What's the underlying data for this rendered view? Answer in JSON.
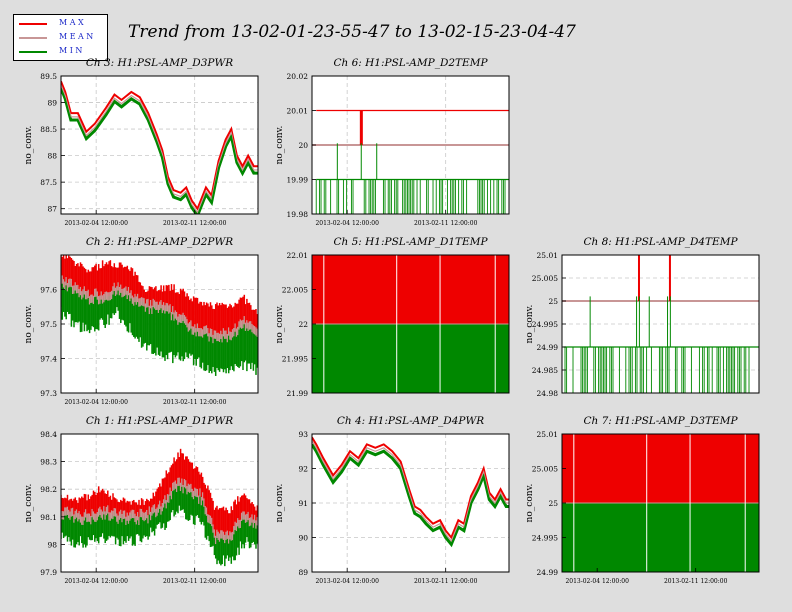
{
  "title": "Trend from 13-02-01-23-55-47 to 13-02-15-23-04-47",
  "legend": [
    {
      "label": "MAX",
      "color": "#ee0000"
    },
    {
      "label": "MEAN",
      "color": "#c89696"
    },
    {
      "label": "MIN",
      "color": "#008800"
    }
  ],
  "colors": {
    "max": "#ee0000",
    "mean": "#c89696",
    "min": "#008800",
    "page_bg": "#dedede"
  },
  "chart_data": [
    {
      "id": "ch3",
      "type": "line",
      "title": "Ch 3: H1:PSL-AMP_D3PWR",
      "ylabel": "no_conv.",
      "ylim": [
        86.9,
        89.5
      ],
      "yticks": [
        "89.5",
        "89",
        "88.5",
        "88",
        "87.5",
        "87"
      ],
      "ytick_values": [
        89.5,
        89,
        88.5,
        88,
        87.5,
        87
      ],
      "xlim": [
        0,
        14
      ],
      "xticks": [
        "2013-02-04 12:00:00",
        "2013-02-11 12:00:00"
      ],
      "xtick_values": [
        2.5,
        9.5
      ],
      "series": [
        {
          "name": "MAX",
          "x": [
            0,
            0.3,
            0.7,
            1.2,
            1.8,
            2.4,
            3.2,
            3.8,
            4.3,
            5.0,
            5.6,
            6.2,
            6.8,
            7.2,
            7.6,
            8.0,
            8.5,
            8.9,
            9.3,
            9.7,
            10.3,
            10.7,
            11.2,
            11.7,
            12.1,
            12.5,
            12.9,
            13.3,
            13.7,
            14
          ],
          "values": [
            89.4,
            89.2,
            88.8,
            88.8,
            88.45,
            88.6,
            88.9,
            89.15,
            89.05,
            89.2,
            89.1,
            88.8,
            88.4,
            88.1,
            87.6,
            87.35,
            87.3,
            87.4,
            87.15,
            87.0,
            87.4,
            87.25,
            87.9,
            88.3,
            88.5,
            88.0,
            87.8,
            88.0,
            87.8,
            87.8
          ]
        },
        {
          "name": "MEAN",
          "x": [
            0,
            0.3,
            0.7,
            1.2,
            1.8,
            2.4,
            3.2,
            3.8,
            4.3,
            5.0,
            5.6,
            6.2,
            6.8,
            7.2,
            7.6,
            8.0,
            8.5,
            8.9,
            9.3,
            9.7,
            10.3,
            10.7,
            11.2,
            11.7,
            12.1,
            12.5,
            12.9,
            13.3,
            13.7,
            14
          ],
          "values": [
            89.33,
            89.13,
            88.73,
            88.73,
            88.38,
            88.53,
            88.83,
            89.08,
            88.98,
            89.13,
            89.03,
            88.73,
            88.33,
            88.03,
            87.53,
            87.28,
            87.23,
            87.33,
            87.08,
            86.93,
            87.33,
            87.18,
            87.83,
            88.23,
            88.43,
            87.93,
            87.73,
            87.93,
            87.73,
            87.73
          ]
        },
        {
          "name": "MIN",
          "x": [
            0,
            0.3,
            0.7,
            1.2,
            1.8,
            2.4,
            3.2,
            3.8,
            4.3,
            5.0,
            5.6,
            6.2,
            6.8,
            7.2,
            7.6,
            8.0,
            8.5,
            8.9,
            9.3,
            9.7,
            10.3,
            10.7,
            11.2,
            11.7,
            12.1,
            12.5,
            12.9,
            13.3,
            13.7,
            14
          ],
          "values": [
            89.27,
            89.07,
            88.67,
            88.67,
            88.32,
            88.47,
            88.77,
            89.02,
            88.92,
            89.07,
            88.97,
            88.67,
            88.27,
            87.97,
            87.47,
            87.22,
            87.17,
            87.27,
            87.02,
            86.87,
            87.27,
            87.12,
            87.77,
            88.17,
            88.37,
            87.87,
            87.67,
            87.87,
            87.67,
            87.67
          ]
        }
      ]
    },
    {
      "id": "ch6",
      "type": "line",
      "title": "Ch 6: H1:PSL-AMP_D2TEMP",
      "ylabel": "no_conv.",
      "ylim": [
        19.98,
        20.02
      ],
      "yticks": [
        "20.02",
        "20.01",
        "20",
        "19.99",
        "19.98"
      ],
      "ytick_values": [
        20.02,
        20.01,
        20,
        19.99,
        19.98
      ],
      "xlim": [
        0,
        14
      ],
      "xticks": [
        "2013-02-04 12:00:00",
        "2013-02-11 12:00:00"
      ],
      "xtick_values": [
        2.5,
        9.5
      ],
      "series": [
        {
          "name": "MAX",
          "x": [
            0.3,
            2.0,
            2.05,
            2.2,
            2.25,
            7.0,
            7.05,
            14
          ],
          "values": [
            20.01,
            20.01,
            20.0,
            20.0,
            20.01,
            20.01,
            20.01,
            20.01
          ]
        },
        {
          "name": "MEAN",
          "x": [
            0,
            14
          ],
          "values": [
            20.0,
            20.0
          ]
        },
        {
          "name": "MIN",
          "x": [
            0.3,
            14
          ],
          "values": [
            19.99,
            19.99
          ]
        }
      ]
    },
    {
      "id": "ch2",
      "type": "line",
      "title": "Ch 2: H1:PSL-AMP_D2PWR",
      "ylabel": "no_conv.",
      "ylim": [
        97.3,
        97.7
      ],
      "yticks": [
        "97.6",
        "97.5",
        "97.4",
        "97.3"
      ],
      "ytick_values": [
        97.6,
        97.5,
        97.4,
        97.3
      ],
      "xlim": [
        0,
        14
      ],
      "xticks": [
        "2013-02-04 12:00:00",
        "2013-02-11 12:00:00"
      ],
      "xtick_values": [
        2.5,
        9.5
      ],
      "series": [
        {
          "name": "MAX",
          "x": [
            0,
            1,
            2,
            3,
            4,
            5,
            6,
            7,
            8,
            9,
            10,
            11,
            12,
            13,
            14
          ],
          "values": [
            97.7,
            97.67,
            97.65,
            97.67,
            97.67,
            97.65,
            97.6,
            97.6,
            97.6,
            97.58,
            97.55,
            97.55,
            97.55,
            97.57,
            97.52
          ]
        },
        {
          "name": "MEAN",
          "x": [
            0,
            1,
            2,
            3,
            4,
            5,
            6,
            7,
            8,
            9,
            10,
            11,
            12,
            13,
            14
          ],
          "values": [
            97.63,
            97.6,
            97.58,
            97.58,
            97.6,
            97.58,
            97.55,
            97.55,
            97.53,
            97.5,
            97.48,
            97.46,
            97.47,
            97.5,
            97.47
          ]
        },
        {
          "name": "MIN",
          "x": [
            0,
            1,
            2,
            3,
            4,
            5,
            6,
            7,
            8,
            9,
            10,
            11,
            12,
            13,
            14
          ],
          "values": [
            97.55,
            97.52,
            97.5,
            97.52,
            97.55,
            97.5,
            97.45,
            97.43,
            97.42,
            97.42,
            97.4,
            97.38,
            97.38,
            97.4,
            97.38
          ]
        }
      ]
    },
    {
      "id": "ch5",
      "type": "area",
      "title": "Ch 5: H1:PSL-AMP_D1TEMP",
      "ylabel": "no_conv.",
      "ylim": [
        21.99,
        22.01
      ],
      "yticks": [
        "22.01",
        "22.005",
        "22",
        "21.995",
        "21.99"
      ],
      "ytick_values": [
        22.01,
        22.005,
        22,
        21.995,
        21.99
      ],
      "xlim": [
        0,
        14
      ],
      "xticks": [],
      "xtick_values": [],
      "series": [
        {
          "name": "MAX",
          "x": [
            0,
            14
          ],
          "values": [
            22.01,
            22.01
          ]
        },
        {
          "name": "MEAN",
          "x": [
            0,
            14
          ],
          "values": [
            22.0,
            22.0
          ]
        },
        {
          "name": "MIN",
          "x": [
            0,
            14
          ],
          "values": [
            21.99,
            21.99
          ]
        }
      ]
    },
    {
      "id": "ch8",
      "type": "line",
      "title": "Ch 8: H1:PSL-AMP_D4TEMP",
      "ylabel": "no_conv.",
      "ylim": [
        24.98,
        25.01
      ],
      "yticks": [
        "25.01",
        "25.005",
        "25",
        "24.995",
        "24.99",
        "24.985",
        "24.98"
      ],
      "ytick_values": [
        25.01,
        25.005,
        25,
        24.995,
        24.99,
        24.985,
        24.98
      ],
      "xlim": [
        0,
        14
      ],
      "xticks": [],
      "xtick_values": [],
      "series": [
        {
          "name": "MAX",
          "x": [
            0,
            14
          ],
          "values": [
            25.0,
            25.0
          ]
        },
        {
          "name": "MEAN",
          "x": [
            0,
            14
          ],
          "values": [
            25.0,
            25.0
          ]
        },
        {
          "name": "MIN",
          "x": [
            0.1,
            14
          ],
          "values": [
            24.99,
            24.99
          ]
        }
      ]
    },
    {
      "id": "ch1",
      "type": "line",
      "title": "Ch 1: H1:PSL-AMP_D1PWR",
      "ylabel": "no_conv.",
      "ylim": [
        97.9,
        98.4
      ],
      "yticks": [
        "98.4",
        "98.3",
        "98.2",
        "98.1",
        "98",
        "97.9"
      ],
      "ytick_values": [
        98.4,
        98.3,
        98.2,
        98.1,
        98,
        97.9
      ],
      "xlim": [
        0,
        14
      ],
      "xticks": [
        "2013-02-04 12:00:00",
        "2013-02-11 12:00:00"
      ],
      "xtick_values": [
        2.5,
        9.5
      ],
      "series": [
        {
          "name": "MAX",
          "x": [
            0,
            1,
            2,
            3,
            4,
            5,
            6,
            7,
            7.5,
            8,
            8.5,
            9,
            10,
            11,
            12,
            13,
            14
          ],
          "values": [
            98.18,
            98.15,
            98.17,
            98.2,
            98.15,
            98.15,
            98.15,
            98.2,
            98.25,
            98.3,
            98.33,
            98.3,
            98.25,
            98.12,
            98.12,
            98.18,
            98.12
          ]
        },
        {
          "name": "MEAN",
          "x": [
            0,
            1,
            2,
            3,
            4,
            5,
            6,
            7,
            7.5,
            8,
            8.5,
            9,
            10,
            11,
            12,
            13,
            14
          ],
          "values": [
            98.12,
            98.1,
            98.1,
            98.12,
            98.1,
            98.1,
            98.1,
            98.13,
            98.16,
            98.2,
            98.22,
            98.2,
            98.17,
            98.03,
            98.03,
            98.1,
            98.08
          ]
        },
        {
          "name": "MIN",
          "x": [
            0,
            1,
            2,
            3,
            4,
            5,
            6,
            7,
            7.5,
            8,
            8.5,
            9,
            10,
            11,
            12,
            13,
            14
          ],
          "values": [
            98.05,
            98.03,
            98.03,
            98.05,
            98.03,
            98.03,
            98.05,
            98.08,
            98.1,
            98.13,
            98.15,
            98.12,
            98.1,
            97.97,
            97.96,
            98.03,
            98.02
          ]
        }
      ]
    },
    {
      "id": "ch4",
      "type": "line",
      "title": "Ch 4: H1:PSL-AMP_D4PWR",
      "ylabel": "no_conv.",
      "ylim": [
        89,
        93
      ],
      "yticks": [
        "93",
        "92",
        "91",
        "90",
        "89"
      ],
      "ytick_values": [
        93,
        92,
        91,
        90,
        89
      ],
      "xlim": [
        0,
        14
      ],
      "xticks": [
        "2013-02-04 12:00:00",
        "2013-02-11 12:00:00"
      ],
      "xtick_values": [
        2.5,
        9.5
      ],
      "series": [
        {
          "name": "MAX",
          "x": [
            0,
            0.3,
            0.8,
            1.5,
            2.1,
            2.7,
            3.3,
            3.9,
            4.5,
            5.1,
            5.7,
            6.3,
            6.9,
            7.3,
            7.7,
            8.1,
            8.6,
            9.1,
            9.5,
            9.9,
            10.4,
            10.8,
            11.3,
            11.8,
            12.2,
            12.6,
            13.0,
            13.4,
            13.8,
            14
          ],
          "values": [
            92.9,
            92.7,
            92.3,
            91.8,
            92.1,
            92.5,
            92.3,
            92.7,
            92.6,
            92.7,
            92.5,
            92.2,
            91.4,
            90.9,
            90.8,
            90.6,
            90.4,
            90.5,
            90.2,
            90.0,
            90.5,
            90.4,
            91.2,
            91.6,
            92.0,
            91.3,
            91.1,
            91.4,
            91.1,
            91.1
          ]
        },
        {
          "name": "MEAN",
          "x": [
            0,
            0.3,
            0.8,
            1.5,
            2.1,
            2.7,
            3.3,
            3.9,
            4.5,
            5.1,
            5.7,
            6.3,
            6.9,
            7.3,
            7.7,
            8.1,
            8.6,
            9.1,
            9.5,
            9.9,
            10.4,
            10.8,
            11.3,
            11.8,
            12.2,
            12.6,
            13.0,
            13.4,
            13.8,
            14
          ],
          "values": [
            92.8,
            92.6,
            92.2,
            91.7,
            92.0,
            92.4,
            92.2,
            92.6,
            92.5,
            92.6,
            92.4,
            92.1,
            91.3,
            90.8,
            90.7,
            90.5,
            90.3,
            90.4,
            90.1,
            89.9,
            90.4,
            90.3,
            91.1,
            91.5,
            91.9,
            91.2,
            91.0,
            91.3,
            91.0,
            91.0
          ]
        },
        {
          "name": "MIN",
          "x": [
            0,
            0.3,
            0.8,
            1.5,
            2.1,
            2.7,
            3.3,
            3.9,
            4.5,
            5.1,
            5.7,
            6.3,
            6.9,
            7.3,
            7.7,
            8.1,
            8.6,
            9.1,
            9.5,
            9.9,
            10.4,
            10.8,
            11.3,
            11.8,
            12.2,
            12.6,
            13.0,
            13.4,
            13.8,
            14
          ],
          "values": [
            92.7,
            92.5,
            92.1,
            91.6,
            91.9,
            92.3,
            92.1,
            92.5,
            92.4,
            92.5,
            92.3,
            92.0,
            91.2,
            90.7,
            90.6,
            90.4,
            90.2,
            90.3,
            90.0,
            89.8,
            90.3,
            90.2,
            91.0,
            91.4,
            91.8,
            91.1,
            90.9,
            91.2,
            90.9,
            90.9
          ]
        }
      ]
    },
    {
      "id": "ch7",
      "type": "area",
      "title": "Ch 7: H1:PSL-AMP_D3TEMP",
      "ylabel": "no_conv.",
      "ylim": [
        24.99,
        25.01
      ],
      "yticks": [
        "25.01",
        "25.005",
        "25",
        "24.995",
        "24.99"
      ],
      "ytick_values": [
        25.01,
        25.005,
        25,
        24.995,
        24.99
      ],
      "xlim": [
        0,
        14
      ],
      "xticks": [
        "2013-02-04 12:00:00",
        "2013-02-11 12:00:00"
      ],
      "xtick_values": [
        2.5,
        9.5
      ],
      "series": [
        {
          "name": "MAX",
          "x": [
            0,
            14
          ],
          "values": [
            25.01,
            25.01
          ]
        },
        {
          "name": "MEAN",
          "x": [
            0,
            14
          ],
          "values": [
            25.0,
            25.0
          ]
        },
        {
          "name": "MIN",
          "x": [
            0,
            14
          ],
          "values": [
            24.99,
            24.99
          ]
        }
      ]
    }
  ]
}
